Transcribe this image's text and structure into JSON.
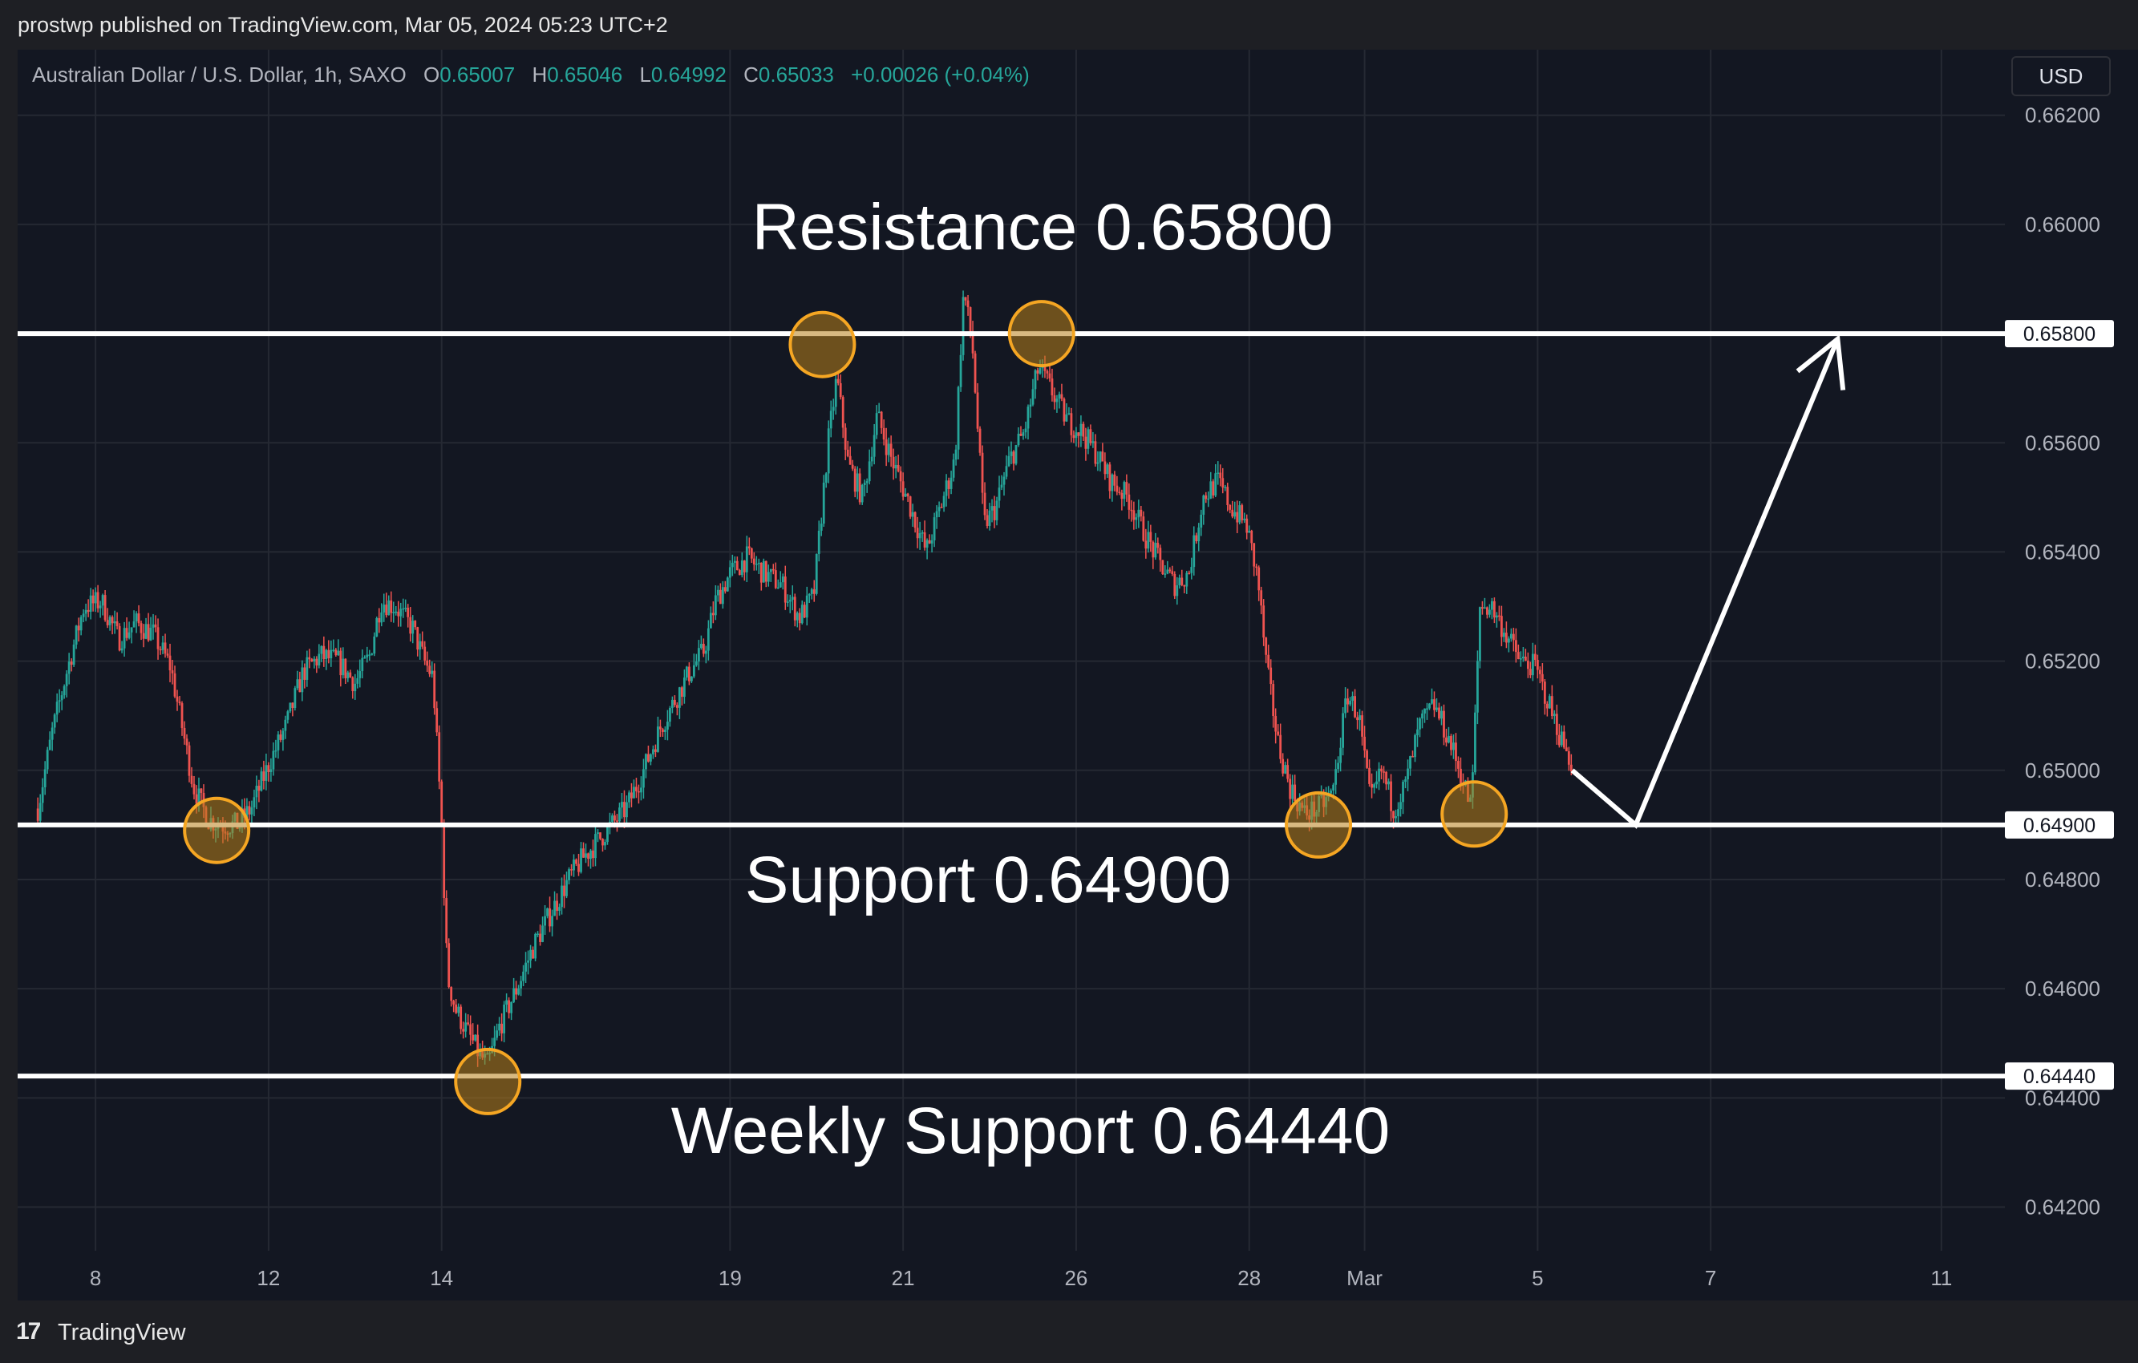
{
  "header": {
    "attribution": "prostwp published on TradingView.com, Mar 05, 2024 05:23 UTC+2"
  },
  "legend": {
    "symbol": "Australian Dollar / U.S. Dollar, 1h, SAXO",
    "o_label": "O",
    "o_value": "0.65007",
    "h_label": "H",
    "h_value": "0.65046",
    "l_label": "L",
    "l_value": "0.64992",
    "c_label": "C",
    "c_value": "0.65033",
    "change": "+0.00026 (+0.04%)"
  },
  "currency_button": "USD",
  "footer": {
    "logo": "17",
    "brand": "TradingView"
  },
  "colors": {
    "background": "#131722",
    "frame": "#1e1f24",
    "grid": "#252933",
    "up": "#26a69a",
    "down": "#ef5350",
    "level_line": "#ffffff",
    "marker_fill": "#b8801a",
    "marker_stroke": "#f5a623"
  },
  "chart_data": {
    "type": "candlestick",
    "y_axis": {
      "range": [
        0.6412,
        0.6632
      ],
      "tick_values": [
        0.662,
        0.66,
        0.658,
        0.656,
        0.654,
        0.652,
        0.65,
        0.648,
        0.646,
        0.644,
        0.642
      ],
      "tick_labels": [
        "0.66200",
        "0.66000",
        "0.65800",
        "0.65600",
        "0.65400",
        "0.65200",
        "0.65000",
        "0.64800",
        "0.64600",
        "0.64400",
        "0.64200"
      ]
    },
    "x_axis": {
      "unit": "days since Feb 7 00:00",
      "range": [
        -0.35,
        34.1
      ],
      "tick_values": [
        1,
        4,
        7,
        12,
        15,
        18,
        21,
        23,
        26,
        29,
        33
      ],
      "tick_labels": [
        "8",
        "12",
        "14",
        "19",
        "21",
        "26",
        "28",
        "Mar",
        "5",
        "7",
        "11"
      ]
    },
    "levels": [
      {
        "name": "resistance",
        "value": 0.658,
        "tag": "0.65800",
        "label": "Resistance 0.65800",
        "label_position": "above"
      },
      {
        "name": "support",
        "value": 0.649,
        "tag": "0.64900",
        "label": "Support 0.64900",
        "label_position": "below"
      },
      {
        "name": "weekly-support",
        "value": 0.6444,
        "tag": "0.64440",
        "label": "Weekly Support 0.64440",
        "label_position": "below"
      }
    ],
    "touch_markers": [
      {
        "x": 3.1,
        "y": 0.6489
      },
      {
        "x": 7.8,
        "y": 0.6443
      },
      {
        "x": 13.6,
        "y": 0.6578
      },
      {
        "x": 17.4,
        "y": 0.658
      },
      {
        "x": 22.2,
        "y": 0.649
      },
      {
        "x": 24.9,
        "y": 0.6492
      }
    ],
    "projection": [
      {
        "x": 26.6,
        "y": 0.65
      },
      {
        "x": 27.7,
        "y": 0.649
      },
      {
        "x": 31.2,
        "y": 0.6579
      }
    ],
    "price_path": [
      [
        0.0,
        0.6493
      ],
      [
        0.25,
        0.6507
      ],
      [
        0.5,
        0.6518
      ],
      [
        0.8,
        0.653
      ],
      [
        1.1,
        0.6531
      ],
      [
        1.4,
        0.6524
      ],
      [
        1.7,
        0.6527
      ],
      [
        2.0,
        0.6525
      ],
      [
        2.3,
        0.6519
      ],
      [
        2.5,
        0.6508
      ],
      [
        2.7,
        0.6497
      ],
      [
        2.95,
        0.6491
      ],
      [
        3.2,
        0.649
      ],
      [
        3.45,
        0.649
      ],
      [
        3.7,
        0.6493
      ],
      [
        4.0,
        0.6501
      ],
      [
        4.3,
        0.6508
      ],
      [
        4.6,
        0.6518
      ],
      [
        4.9,
        0.6521
      ],
      [
        5.2,
        0.652
      ],
      [
        5.5,
        0.6516
      ],
      [
        5.75,
        0.6521
      ],
      [
        5.95,
        0.6531
      ],
      [
        6.2,
        0.653
      ],
      [
        6.5,
        0.6526
      ],
      [
        6.7,
        0.652
      ],
      [
        6.85,
        0.6517
      ],
      [
        7.0,
        0.649
      ],
      [
        7.1,
        0.6462
      ],
      [
        7.25,
        0.6456
      ],
      [
        7.45,
        0.6452
      ],
      [
        7.65,
        0.6448
      ],
      [
        7.8,
        0.6446
      ],
      [
        8.0,
        0.6453
      ],
      [
        8.3,
        0.646
      ],
      [
        8.6,
        0.6468
      ],
      [
        8.9,
        0.6474
      ],
      [
        9.2,
        0.648
      ],
      [
        9.45,
        0.6484
      ],
      [
        9.7,
        0.6487
      ],
      [
        9.95,
        0.649
      ],
      [
        10.2,
        0.6493
      ],
      [
        10.5,
        0.65
      ],
      [
        10.8,
        0.6508
      ],
      [
        11.05,
        0.6513
      ],
      [
        11.3,
        0.6518
      ],
      [
        11.55,
        0.6522
      ],
      [
        11.75,
        0.6531
      ],
      [
        12.0,
        0.6536
      ],
      [
        12.3,
        0.6539
      ],
      [
        12.6,
        0.6536
      ],
      [
        12.9,
        0.6534
      ],
      [
        13.2,
        0.6528
      ],
      [
        13.45,
        0.6532
      ],
      [
        13.7,
        0.656
      ],
      [
        13.85,
        0.6572
      ],
      [
        14.05,
        0.6556
      ],
      [
        14.3,
        0.655
      ],
      [
        14.55,
        0.6565
      ],
      [
        14.8,
        0.6557
      ],
      [
        15.1,
        0.6549
      ],
      [
        15.4,
        0.654
      ],
      [
        15.7,
        0.655
      ],
      [
        15.9,
        0.6557
      ],
      [
        16.05,
        0.6588
      ],
      [
        16.2,
        0.6578
      ],
      [
        16.4,
        0.6545
      ],
      [
        16.6,
        0.6548
      ],
      [
        16.85,
        0.6557
      ],
      [
        17.1,
        0.6562
      ],
      [
        17.35,
        0.6574
      ],
      [
        17.6,
        0.6569
      ],
      [
        17.85,
        0.6564
      ],
      [
        18.1,
        0.6562
      ],
      [
        18.35,
        0.6558
      ],
      [
        18.6,
        0.6553
      ],
      [
        18.9,
        0.655
      ],
      [
        19.2,
        0.6543
      ],
      [
        19.45,
        0.6538
      ],
      [
        19.7,
        0.6534
      ],
      [
        19.95,
        0.6536
      ],
      [
        20.2,
        0.655
      ],
      [
        20.45,
        0.6553
      ],
      [
        20.7,
        0.6548
      ],
      [
        20.95,
        0.6545
      ],
      [
        21.15,
        0.6535
      ],
      [
        21.3,
        0.6519
      ],
      [
        21.5,
        0.6505
      ],
      [
        21.7,
        0.6497
      ],
      [
        21.95,
        0.6492
      ],
      [
        22.2,
        0.6493
      ],
      [
        22.45,
        0.6496
      ],
      [
        22.7,
        0.6514
      ],
      [
        22.9,
        0.651
      ],
      [
        23.1,
        0.6494
      ],
      [
        23.3,
        0.65
      ],
      [
        23.5,
        0.6493
      ],
      [
        23.7,
        0.6497
      ],
      [
        23.95,
        0.6508
      ],
      [
        24.2,
        0.6512
      ],
      [
        24.45,
        0.6506
      ],
      [
        24.65,
        0.65
      ],
      [
        24.85,
        0.6493
      ],
      [
        25.0,
        0.653
      ],
      [
        25.2,
        0.653
      ],
      [
        25.45,
        0.6525
      ],
      [
        25.7,
        0.652
      ],
      [
        25.95,
        0.6519
      ],
      [
        26.2,
        0.6512
      ],
      [
        26.4,
        0.6506
      ],
      [
        26.6,
        0.6501
      ]
    ],
    "title": "",
    "xlabel": "",
    "ylabel": "",
    "grid": true
  }
}
